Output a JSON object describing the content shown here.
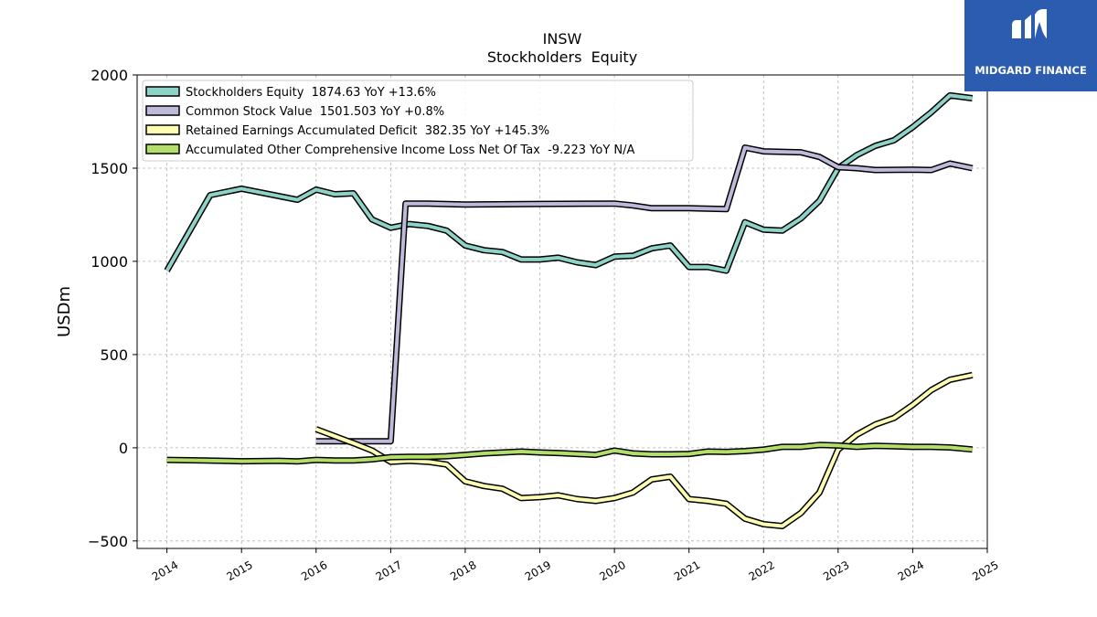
{
  "chart_data": {
    "type": "line",
    "title": "INSW",
    "subtitle": "Stockholders  Equity",
    "xlabel": "",
    "ylabel": "USDm",
    "xlim": [
      2013.6,
      2025.0
    ],
    "ylim": [
      -540,
      2000
    ],
    "x_ticks": [
      2014,
      2015,
      2016,
      2017,
      2018,
      2019,
      2020,
      2021,
      2022,
      2023,
      2024,
      2025
    ],
    "y_ticks": [
      -500,
      0,
      500,
      1000,
      1500,
      2000
    ],
    "y_tick_labels": [
      "−500",
      "0",
      "500",
      "1000",
      "1500",
      "2000"
    ],
    "grid": true,
    "legend_position": "top-left",
    "series": [
      {
        "name": "Stockholders Equity  1874.63 YoY +13.6%",
        "color": "#8dd3c7",
        "points": [
          [
            2014.0,
            950
          ],
          [
            2014.58,
            1355
          ],
          [
            2015.0,
            1390
          ],
          [
            2015.75,
            1330
          ],
          [
            2016.0,
            1385
          ],
          [
            2016.25,
            1360
          ],
          [
            2016.5,
            1365
          ],
          [
            2016.75,
            1225
          ],
          [
            2017.0,
            1180
          ],
          [
            2017.25,
            1200
          ],
          [
            2017.5,
            1190
          ],
          [
            2017.75,
            1165
          ],
          [
            2018.0,
            1085
          ],
          [
            2018.25,
            1060
          ],
          [
            2018.5,
            1050
          ],
          [
            2018.75,
            1010
          ],
          [
            2019.0,
            1010
          ],
          [
            2019.25,
            1020
          ],
          [
            2019.5,
            995
          ],
          [
            2019.75,
            980
          ],
          [
            2020.0,
            1025
          ],
          [
            2020.25,
            1030
          ],
          [
            2020.5,
            1070
          ],
          [
            2020.75,
            1085
          ],
          [
            2021.0,
            970
          ],
          [
            2021.25,
            970
          ],
          [
            2021.5,
            950
          ],
          [
            2021.75,
            1210
          ],
          [
            2022.0,
            1170
          ],
          [
            2022.25,
            1165
          ],
          [
            2022.5,
            1230
          ],
          [
            2022.75,
            1325
          ],
          [
            2023.0,
            1500
          ],
          [
            2023.25,
            1570
          ],
          [
            2023.5,
            1620
          ],
          [
            2023.75,
            1650
          ],
          [
            2024.0,
            1720
          ],
          [
            2024.25,
            1800
          ],
          [
            2024.5,
            1890
          ],
          [
            2024.8,
            1875
          ]
        ]
      },
      {
        "name": "Common Stock Value  1501.503 YoY +0.8%",
        "color": "#bebada",
        "points": [
          [
            2016.0,
            35
          ],
          [
            2016.5,
            35
          ],
          [
            2017.0,
            35
          ],
          [
            2017.2,
            1310
          ],
          [
            2017.5,
            1310
          ],
          [
            2018.0,
            1305
          ],
          [
            2019.0,
            1308
          ],
          [
            2020.0,
            1310
          ],
          [
            2020.25,
            1300
          ],
          [
            2020.5,
            1285
          ],
          [
            2021.0,
            1285
          ],
          [
            2021.5,
            1280
          ],
          [
            2021.75,
            1610
          ],
          [
            2022.0,
            1590
          ],
          [
            2022.5,
            1585
          ],
          [
            2022.75,
            1560
          ],
          [
            2023.0,
            1505
          ],
          [
            2023.25,
            1500
          ],
          [
            2023.5,
            1490
          ],
          [
            2024.0,
            1492
          ],
          [
            2024.25,
            1490
          ],
          [
            2024.5,
            1525
          ],
          [
            2024.8,
            1500
          ]
        ]
      },
      {
        "name": "Retained Earnings Accumulated Deficit  382.35 YoY +145.3%",
        "color": "#ffffb3",
        "points": [
          [
            2016.0,
            100
          ],
          [
            2016.5,
            25
          ],
          [
            2016.75,
            -15
          ],
          [
            2017.0,
            -75
          ],
          [
            2017.25,
            -70
          ],
          [
            2017.5,
            -75
          ],
          [
            2017.75,
            -90
          ],
          [
            2018.0,
            -180
          ],
          [
            2018.25,
            -205
          ],
          [
            2018.5,
            -220
          ],
          [
            2018.75,
            -270
          ],
          [
            2019.0,
            -265
          ],
          [
            2019.25,
            -255
          ],
          [
            2019.5,
            -275
          ],
          [
            2019.75,
            -285
          ],
          [
            2020.0,
            -270
          ],
          [
            2020.25,
            -240
          ],
          [
            2020.5,
            -170
          ],
          [
            2020.75,
            -155
          ],
          [
            2021.0,
            -275
          ],
          [
            2021.25,
            -285
          ],
          [
            2021.5,
            -300
          ],
          [
            2021.75,
            -380
          ],
          [
            2022.0,
            -410
          ],
          [
            2022.25,
            -420
          ],
          [
            2022.5,
            -350
          ],
          [
            2022.75,
            -240
          ],
          [
            2023.0,
            -10
          ],
          [
            2023.25,
            70
          ],
          [
            2023.5,
            125
          ],
          [
            2023.75,
            160
          ],
          [
            2024.0,
            230
          ],
          [
            2024.25,
            310
          ],
          [
            2024.5,
            365
          ],
          [
            2024.8,
            390
          ]
        ]
      },
      {
        "name": "Accumulated Other Comprehensive Income Loss Net Of Tax  -9.223 YoY N/A",
        "color": "#b3de69",
        "points": [
          [
            2014.0,
            -65
          ],
          [
            2014.5,
            -68
          ],
          [
            2015.0,
            -72
          ],
          [
            2015.5,
            -70
          ],
          [
            2015.75,
            -73
          ],
          [
            2016.0,
            -65
          ],
          [
            2016.25,
            -68
          ],
          [
            2016.5,
            -68
          ],
          [
            2016.75,
            -62
          ],
          [
            2017.0,
            -50
          ],
          [
            2017.25,
            -48
          ],
          [
            2017.5,
            -48
          ],
          [
            2017.75,
            -45
          ],
          [
            2018.0,
            -38
          ],
          [
            2018.25,
            -30
          ],
          [
            2018.5,
            -25
          ],
          [
            2018.75,
            -20
          ],
          [
            2019.0,
            -25
          ],
          [
            2019.25,
            -28
          ],
          [
            2019.5,
            -33
          ],
          [
            2019.75,
            -38
          ],
          [
            2020.0,
            -15
          ],
          [
            2020.25,
            -30
          ],
          [
            2020.5,
            -35
          ],
          [
            2020.75,
            -35
          ],
          [
            2021.0,
            -33
          ],
          [
            2021.25,
            -20
          ],
          [
            2021.5,
            -22
          ],
          [
            2021.75,
            -18
          ],
          [
            2022.0,
            -10
          ],
          [
            2022.25,
            5
          ],
          [
            2022.5,
            5
          ],
          [
            2022.75,
            15
          ],
          [
            2023.0,
            12
          ],
          [
            2023.25,
            5
          ],
          [
            2023.5,
            10
          ],
          [
            2023.75,
            8
          ],
          [
            2024.0,
            5
          ],
          [
            2024.25,
            5
          ],
          [
            2024.5,
            2
          ],
          [
            2024.8,
            -9
          ]
        ]
      }
    ]
  },
  "logo": {
    "name": "MIDGARD FINANCE",
    "bg_color": "#2c5cb0"
  }
}
